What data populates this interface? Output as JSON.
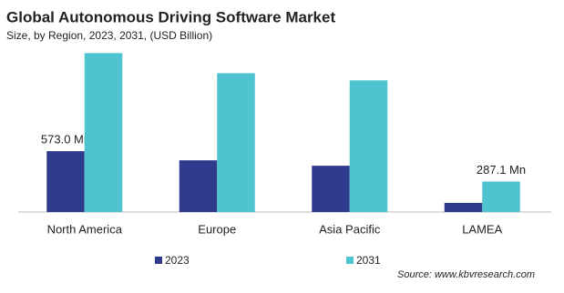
{
  "chart_data": {
    "type": "bar",
    "title": "Global Autonomous Driving Software Market",
    "subtitle": "Size, by Region, 2023, 2031, (USD Billion)",
    "categories": [
      "North America",
      "Europe",
      "Asia Pacific",
      "LAMEA"
    ],
    "series": [
      {
        "name": "2023",
        "color": "#2e3a8c",
        "values": [
          573.0,
          487,
          436,
          86
        ],
        "value_labels": [
          "573.0 Mn",
          null,
          null,
          null
        ]
      },
      {
        "name": "2031",
        "color": "#4fc3cf",
        "values": [
          1497,
          1308,
          1240,
          287.1
        ],
        "value_labels": [
          null,
          null,
          null,
          "287.1 Mn"
        ]
      }
    ],
    "source": "Source: www.kbvresearch.com"
  }
}
